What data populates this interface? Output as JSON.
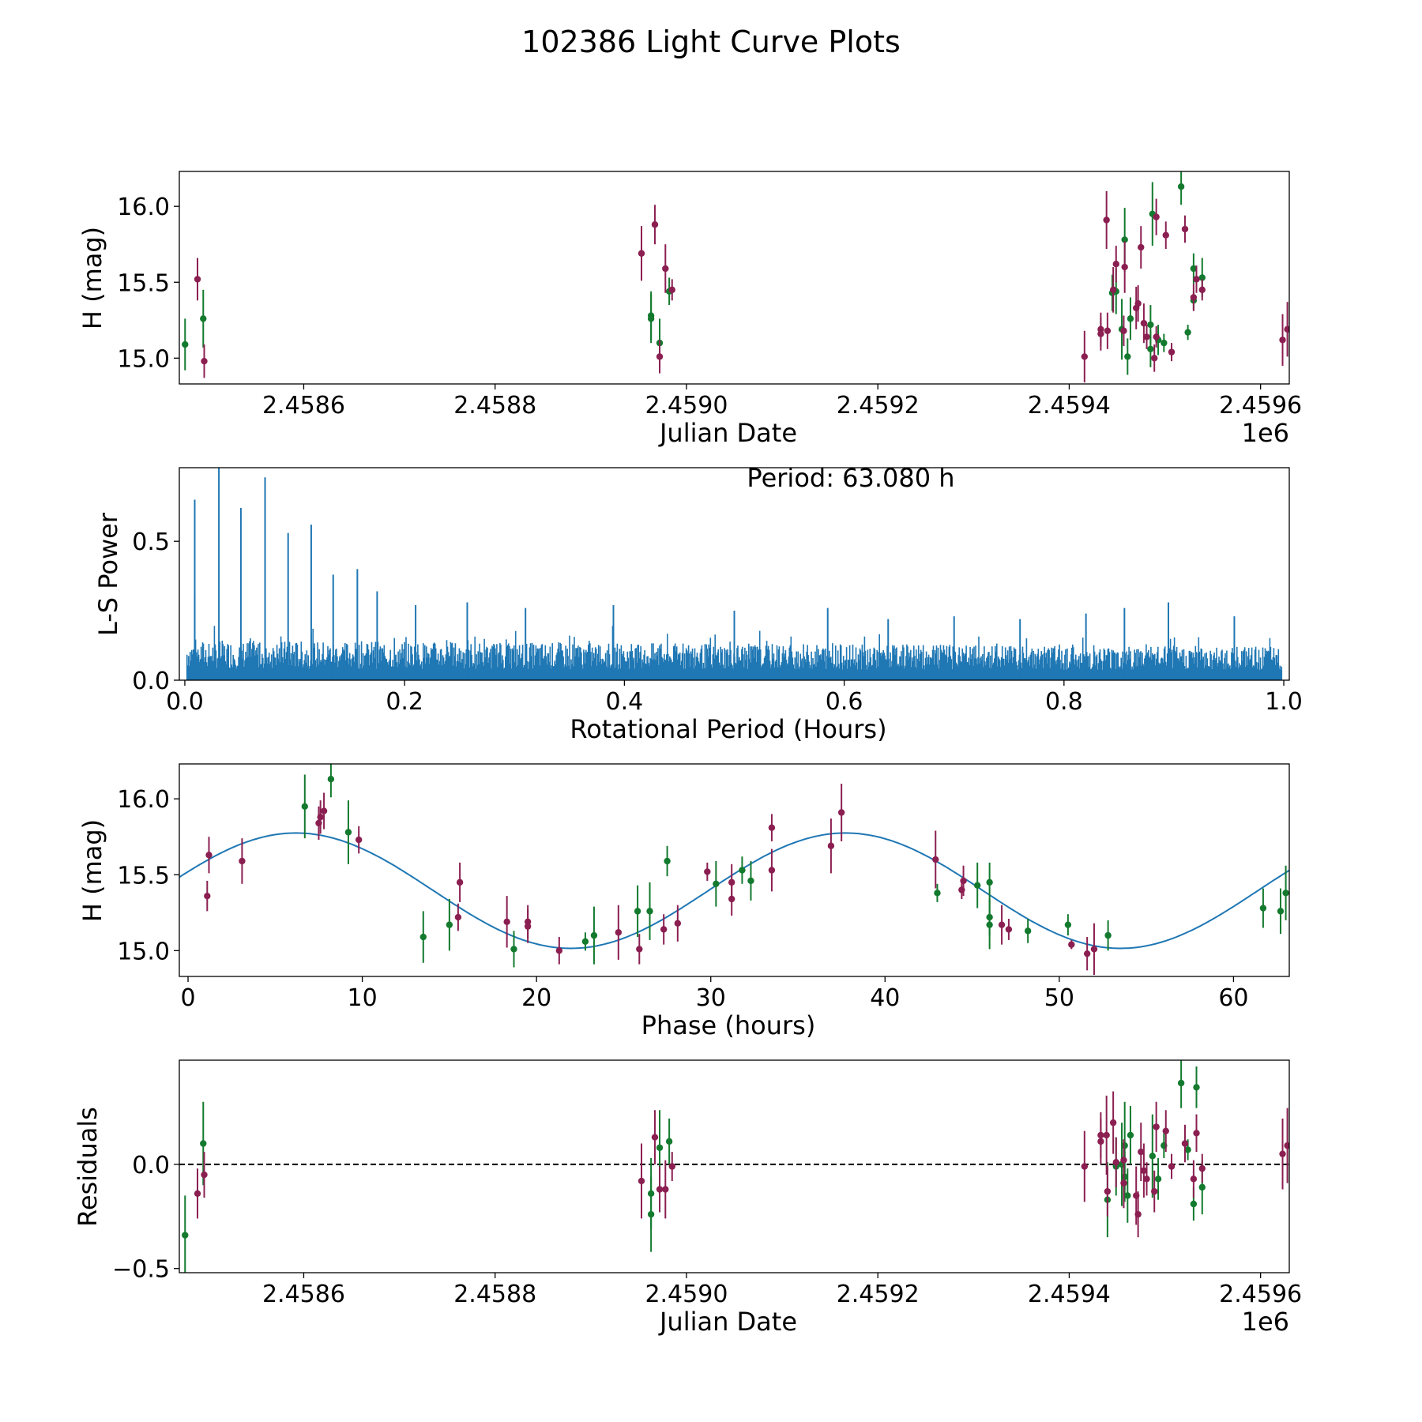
{
  "figure_title": "102386 Light Curve Plots",
  "chart_data": [
    {
      "id": "raw_lightcurve",
      "type": "scatter",
      "xlabel": "Julian Date",
      "ylabel": "H (mag)",
      "x_offset_label": "1e6",
      "xlim": [
        2.45847,
        2.45963
      ],
      "ylim": [
        14.83,
        16.23
      ],
      "xticks": [
        2.4586,
        2.4588,
        2.459,
        2.4592,
        2.4594,
        2.4596
      ],
      "xtick_labels": [
        "2.4586",
        "2.4588",
        "2.4590",
        "2.4592",
        "2.4594",
        "2.4596"
      ],
      "yticks": [
        15.0,
        15.5,
        16.0
      ],
      "ytick_labels": [
        "15.0",
        "15.5",
        "16.0"
      ],
      "series": [
        {
          "name": "green",
          "color": "#137a2e",
          "points": [
            [
              2.458476,
              15.09,
              0.17
            ],
            [
              2.458495,
              15.26,
              0.19
            ],
            [
              2.458963,
              15.28,
              0.16
            ],
            [
              2.458963,
              15.26,
              0.16
            ],
            [
              2.458972,
              15.1,
              0.16
            ],
            [
              2.458982,
              15.44,
              0.09
            ],
            [
              2.459445,
              15.43,
              0.12
            ],
            [
              2.459449,
              15.44,
              0.15
            ],
            [
              2.459455,
              15.19,
              0.2
            ],
            [
              2.459458,
              15.78,
              0.21
            ],
            [
              2.459461,
              15.01,
              0.12
            ],
            [
              2.459464,
              15.26,
              0.14
            ],
            [
              2.459487,
              15.95,
              0.21
            ],
            [
              2.459485,
              15.22,
              0.13
            ],
            [
              2.459493,
              15.12,
              0.1
            ],
            [
              2.459499,
              15.1,
              0.06
            ],
            [
              2.459517,
              16.13,
              0.12
            ],
            [
              2.459524,
              15.17,
              0.05
            ],
            [
              2.45953,
              15.38,
              0.06
            ],
            [
              2.45953,
              15.59,
              0.1
            ],
            [
              2.459539,
              15.53,
              0.13
            ],
            [
              2.459485,
              15.06,
              0.12
            ]
          ]
        },
        {
          "name": "maroon",
          "color": "#8b1f51",
          "points": [
            [
              2.458489,
              15.52,
              0.14
            ],
            [
              2.458496,
              14.98,
              0.11
            ],
            [
              2.458953,
              15.69,
              0.18
            ],
            [
              2.458967,
              15.88,
              0.13
            ],
            [
              2.458972,
              15.01,
              0.11
            ],
            [
              2.458978,
              15.59,
              0.16
            ],
            [
              2.458985,
              15.45,
              0.07
            ],
            [
              2.459416,
              15.01,
              0.17
            ],
            [
              2.459433,
              15.19,
              0.11
            ],
            [
              2.459433,
              15.16,
              0.11
            ],
            [
              2.459439,
              15.91,
              0.19
            ],
            [
              2.45944,
              15.18,
              0.12
            ],
            [
              2.459446,
              15.45,
              0.15
            ],
            [
              2.459449,
              15.62,
              0.12
            ],
            [
              2.459458,
              15.6,
              0.17
            ],
            [
              2.459457,
              15.18,
              0.1
            ],
            [
              2.45947,
              15.33,
              0.14
            ],
            [
              2.459472,
              15.36,
              0.12
            ],
            [
              2.459475,
              15.73,
              0.14
            ],
            [
              2.459478,
              15.23,
              0.13
            ],
            [
              2.459481,
              15.14,
              0.08
            ],
            [
              2.459489,
              15.0,
              0.09
            ],
            [
              2.459491,
              15.14,
              0.07
            ],
            [
              2.459491,
              15.93,
              0.12
            ],
            [
              2.459501,
              15.81,
              0.09
            ],
            [
              2.459507,
              15.04,
              0.06
            ],
            [
              2.459521,
              15.85,
              0.09
            ],
            [
              2.45953,
              15.4,
              0.09
            ],
            [
              2.459533,
              15.52,
              0.09
            ],
            [
              2.459539,
              15.45,
              0.07
            ],
            [
              2.459623,
              15.12,
              0.17
            ],
            [
              2.459628,
              15.19,
              0.18
            ]
          ]
        }
      ]
    },
    {
      "id": "periodogram",
      "type": "line",
      "xlabel": "Rotational Period (Hours)",
      "ylabel": "L-S Power",
      "annotation": "Period: 63.080 h",
      "xlim": [
        -0.005,
        1.005
      ],
      "ylim": [
        0.0,
        0.765
      ],
      "xticks": [
        0.0,
        0.2,
        0.4,
        0.6,
        0.8,
        1.0
      ],
      "xtick_labels": [
        "0.0",
        "0.2",
        "0.4",
        "0.6",
        "0.8",
        "1.0"
      ],
      "yticks": [
        0.0,
        0.5
      ],
      "ytick_labels": [
        "0.0",
        "0.5"
      ],
      "color": "#1f77b4",
      "peaks": [
        [
          0.009,
          0.65
        ],
        [
          0.031,
          0.77
        ],
        [
          0.051,
          0.62
        ],
        [
          0.073,
          0.73
        ],
        [
          0.094,
          0.53
        ],
        [
          0.115,
          0.56
        ],
        [
          0.135,
          0.38
        ],
        [
          0.157,
          0.4
        ],
        [
          0.009,
          0.31
        ],
        [
          0.175,
          0.32
        ],
        [
          0.21,
          0.27
        ],
        [
          0.257,
          0.28
        ],
        [
          0.31,
          0.26
        ],
        [
          0.39,
          0.27
        ],
        [
          0.5,
          0.25
        ],
        [
          0.585,
          0.26
        ],
        [
          0.64,
          0.22
        ],
        [
          0.7,
          0.23
        ],
        [
          0.76,
          0.22
        ],
        [
          0.82,
          0.24
        ],
        [
          0.855,
          0.26
        ],
        [
          0.895,
          0.28
        ],
        [
          0.955,
          0.23
        ]
      ],
      "noise_base": 0.12,
      "noise_base_end": 0.1
    },
    {
      "id": "phased_lightcurve",
      "type": "scatter",
      "xlabel": "Phase (hours)",
      "ylabel": "H (mag)",
      "xlim": [
        -0.5,
        63.2
      ],
      "ylim": [
        14.83,
        16.23
      ],
      "xticks": [
        0,
        10,
        20,
        30,
        40,
        50,
        60
      ],
      "xtick_labels": [
        "0",
        "10",
        "20",
        "30",
        "40",
        "50",
        "60"
      ],
      "yticks": [
        15.0,
        15.5,
        16.0
      ],
      "ytick_labels": [
        "15.0",
        "15.5",
        "16.0"
      ],
      "model": {
        "period": 63.08,
        "mean": 15.395,
        "amplitude": 0.38,
        "phase_peak": 6.2,
        "harmonics": 2,
        "color": "#1f77b4"
      },
      "series": [
        {
          "name": "green",
          "color": "#137a2e",
          "points": [
            [
              6.7,
              15.95,
              0.21
            ],
            [
              8.2,
              16.13,
              0.12
            ],
            [
              9.2,
              15.78,
              0.21
            ],
            [
              13.5,
              15.09,
              0.17
            ],
            [
              15.0,
              15.17,
              0.17
            ],
            [
              18.7,
              15.01,
              0.12
            ],
            [
              22.8,
              15.06,
              0.06
            ],
            [
              23.3,
              15.1,
              0.19
            ],
            [
              25.8,
              15.26,
              0.17
            ],
            [
              26.5,
              15.26,
              0.19
            ],
            [
              27.5,
              15.59,
              0.1
            ],
            [
              30.3,
              15.44,
              0.15
            ],
            [
              31.8,
              15.53,
              0.09
            ],
            [
              32.3,
              15.46,
              0.13
            ],
            [
              43.0,
              15.38,
              0.06
            ],
            [
              45.3,
              15.43,
              0.15
            ],
            [
              46.0,
              15.45,
              0.13
            ],
            [
              46.0,
              15.22,
              0.12
            ],
            [
              46.0,
              15.17,
              0.16
            ],
            [
              48.2,
              15.13,
              0.08
            ],
            [
              50.5,
              15.17,
              0.07
            ],
            [
              52.8,
              15.1,
              0.1
            ],
            [
              61.7,
              15.28,
              0.13
            ],
            [
              62.7,
              15.26,
              0.15
            ],
            [
              63.0,
              15.38,
              0.18
            ]
          ]
        },
        {
          "name": "maroon",
          "color": "#8b1f51",
          "points": [
            [
              1.1,
              15.36,
              0.1
            ],
            [
              1.2,
              15.63,
              0.12
            ],
            [
              3.1,
              15.59,
              0.15
            ],
            [
              7.5,
              15.84,
              0.11
            ],
            [
              7.6,
              15.88,
              0.11
            ],
            [
              7.8,
              15.92,
              0.12
            ],
            [
              9.8,
              15.73,
              0.09
            ],
            [
              15.5,
              15.22,
              0.09
            ],
            [
              15.6,
              15.45,
              0.13
            ],
            [
              18.3,
              15.19,
              0.17
            ],
            [
              19.5,
              15.19,
              0.11
            ],
            [
              19.5,
              15.16,
              0.11
            ],
            [
              21.3,
              15.0,
              0.09
            ],
            [
              24.7,
              15.12,
              0.18
            ],
            [
              25.9,
              15.01,
              0.1
            ],
            [
              27.3,
              15.14,
              0.1
            ],
            [
              28.1,
              15.18,
              0.12
            ],
            [
              29.8,
              15.52,
              0.06
            ],
            [
              31.2,
              15.34,
              0.11
            ],
            [
              31.2,
              15.45,
              0.12
            ],
            [
              33.5,
              15.81,
              0.09
            ],
            [
              33.5,
              15.53,
              0.14
            ],
            [
              36.9,
              15.69,
              0.18
            ],
            [
              37.5,
              15.91,
              0.19
            ],
            [
              42.9,
              15.6,
              0.19
            ],
            [
              44.4,
              15.4,
              0.06
            ],
            [
              44.5,
              15.46,
              0.1
            ],
            [
              46.7,
              15.17,
              0.13
            ],
            [
              47.1,
              15.14,
              0.07
            ],
            [
              50.7,
              15.04,
              0.03
            ],
            [
              51.6,
              14.98,
              0.11
            ],
            [
              52.0,
              15.01,
              0.17
            ]
          ]
        }
      ]
    },
    {
      "id": "residuals",
      "type": "scatter",
      "xlabel": "Julian Date",
      "ylabel": "Residuals",
      "x_offset_label": "1e6",
      "xlim": [
        2.45847,
        2.45963
      ],
      "ylim": [
        -0.52,
        0.5
      ],
      "xticks": [
        2.4586,
        2.4588,
        2.459,
        2.4592,
        2.4594,
        2.4596
      ],
      "xtick_labels": [
        "2.4586",
        "2.4588",
        "2.4590",
        "2.4592",
        "2.4594",
        "2.4596"
      ],
      "yticks": [
        -0.5,
        0.0
      ],
      "ytick_labels": [
        "−0.5",
        "0.0"
      ],
      "zero_line": true,
      "series": [
        {
          "name": "green",
          "color": "#137a2e",
          "points": [
            [
              2.458476,
              -0.34,
              0.19
            ],
            [
              2.458495,
              0.1,
              0.2
            ],
            [
              2.458963,
              -0.14,
              0.17
            ],
            [
              2.458963,
              -0.24,
              0.18
            ],
            [
              2.458972,
              0.08,
              0.18
            ],
            [
              2.458982,
              0.11,
              0.11
            ],
            [
              2.45944,
              -0.17,
              0.18
            ],
            [
              2.459449,
              -0.01,
              0.14
            ],
            [
              2.459455,
              0.0,
              0.2
            ],
            [
              2.459458,
              0.09,
              0.21
            ],
            [
              2.459461,
              -0.15,
              0.13
            ],
            [
              2.459464,
              0.14,
              0.14
            ],
            [
              2.459487,
              0.04,
              0.2
            ],
            [
              2.459493,
              -0.07,
              0.1
            ],
            [
              2.459499,
              0.09,
              0.06
            ],
            [
              2.459517,
              0.39,
              0.12
            ],
            [
              2.459524,
              0.07,
              0.05
            ],
            [
              2.45953,
              -0.19,
              0.08
            ],
            [
              2.459533,
              0.37,
              0.1
            ],
            [
              2.459539,
              -0.11,
              0.13
            ],
            [
              2.459458,
              -0.06,
              0.12
            ]
          ]
        },
        {
          "name": "maroon",
          "color": "#8b1f51",
          "points": [
            [
              2.458489,
              -0.14,
              0.12
            ],
            [
              2.458496,
              -0.05,
              0.11
            ],
            [
              2.458953,
              -0.08,
              0.18
            ],
            [
              2.458967,
              0.13,
              0.13
            ],
            [
              2.458972,
              -0.12,
              0.11
            ],
            [
              2.458978,
              -0.12,
              0.14
            ],
            [
              2.458985,
              -0.01,
              0.07
            ],
            [
              2.459416,
              -0.01,
              0.17
            ],
            [
              2.459433,
              0.11,
              0.11
            ],
            [
              2.459433,
              0.14,
              0.11
            ],
            [
              2.459439,
              0.14,
              0.19
            ],
            [
              2.45944,
              -0.13,
              0.12
            ],
            [
              2.459446,
              0.2,
              0.15
            ],
            [
              2.459449,
              0.01,
              0.12
            ],
            [
              2.459457,
              -0.09,
              0.12
            ],
            [
              2.459457,
              0.02,
              0.1
            ],
            [
              2.45947,
              -0.15,
              0.14
            ],
            [
              2.459472,
              -0.24,
              0.11
            ],
            [
              2.459475,
              0.06,
              0.14
            ],
            [
              2.459478,
              -0.03,
              0.13
            ],
            [
              2.459481,
              -0.07,
              0.08
            ],
            [
              2.459489,
              -0.13,
              0.1
            ],
            [
              2.459491,
              0.18,
              0.12
            ],
            [
              2.459501,
              0.16,
              0.1
            ],
            [
              2.459507,
              -0.01,
              0.06
            ],
            [
              2.459521,
              0.1,
              0.09
            ],
            [
              2.45953,
              -0.07,
              0.09
            ],
            [
              2.459533,
              0.15,
              0.09
            ],
            [
              2.459539,
              -0.02,
              0.07
            ],
            [
              2.459623,
              0.05,
              0.17
            ],
            [
              2.459628,
              0.09,
              0.18
            ]
          ]
        }
      ]
    }
  ]
}
